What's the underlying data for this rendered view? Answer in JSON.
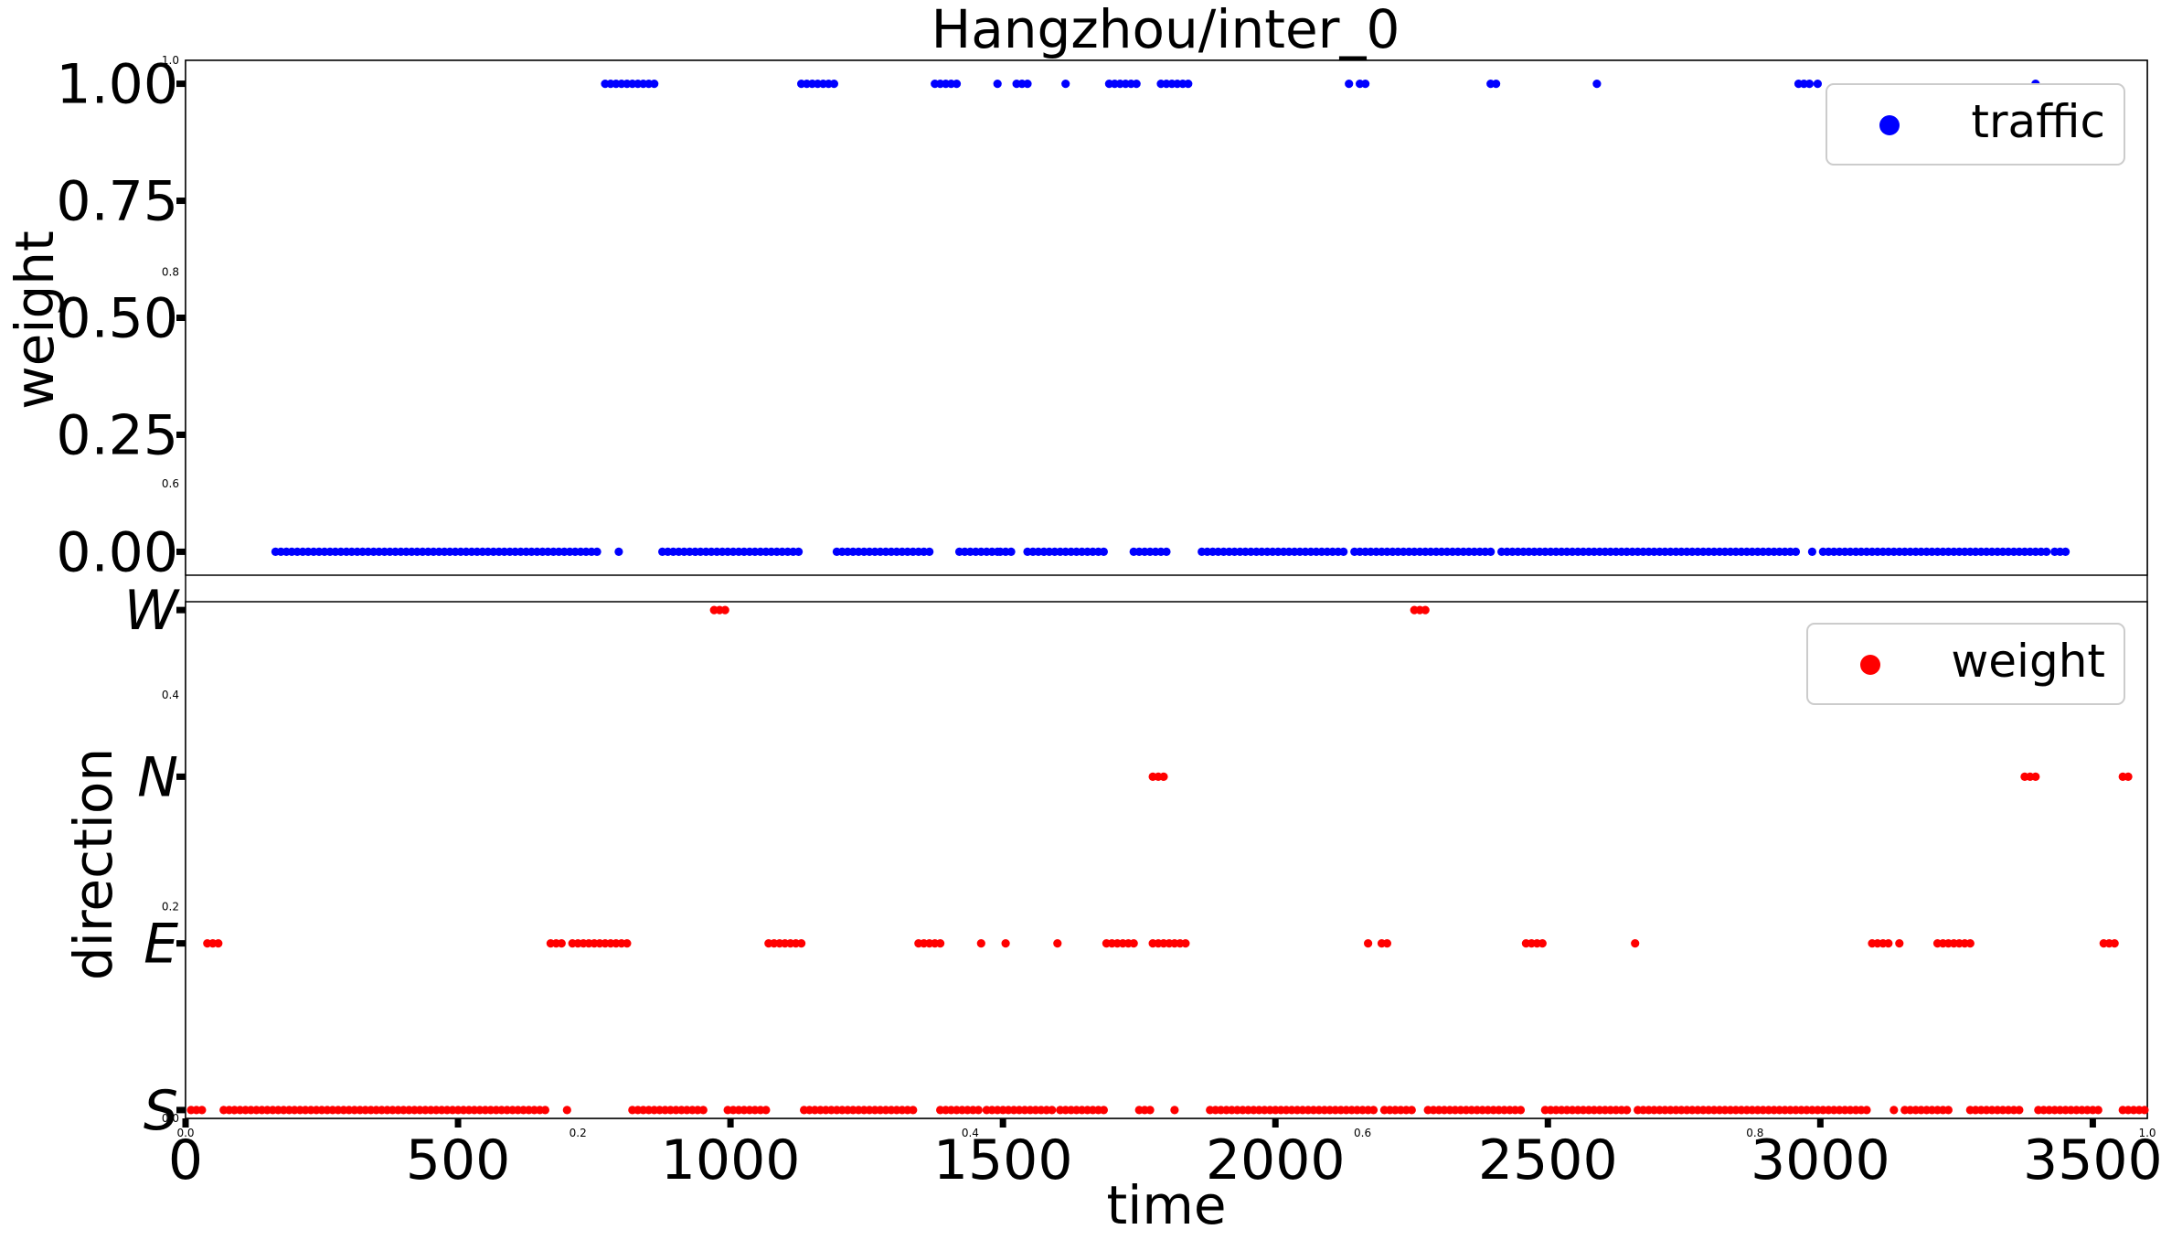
{
  "chart_data": {
    "type": "scatter",
    "title": "Hangzhou/inter_0",
    "background_axis": {
      "ticks": [
        "0.0",
        "0.2",
        "0.4",
        "0.6",
        "0.8",
        "1.0"
      ]
    },
    "panels": [
      {
        "id": "top",
        "ylabel": "weight",
        "xlim": [
          0,
          3600
        ],
        "ylim": [
          -0.05,
          1.05
        ],
        "yticks": [
          0.0,
          0.25,
          0.5,
          0.75,
          1.0
        ],
        "ytick_labels": [
          "0.00",
          "0.25",
          "0.50",
          "0.75",
          "1.00"
        ],
        "legend": "top-right",
        "series": {
          "name": "traffic",
          "color": "#0000ff",
          "runs_at_1": [
            [
              770,
              800
            ],
            [
              810,
              865
            ],
            [
              1130,
              1190
            ],
            [
              1375,
              1415
            ],
            [
              1490,
              1490
            ],
            [
              1525,
              1545
            ],
            [
              1615,
              1615
            ],
            [
              1695,
              1745
            ],
            [
              1790,
              1845
            ],
            [
              2135,
              2135
            ],
            [
              2155,
              2170
            ],
            [
              2395,
              2410
            ],
            [
              2590,
              2590
            ],
            [
              2960,
              2980
            ],
            [
              2995,
              2995
            ],
            [
              3395,
              3400
            ]
          ],
          "runs_at_0": [
            [
              165,
              760
            ],
            [
              795,
              795
            ],
            [
              875,
              1125
            ],
            [
              1195,
              1370
            ],
            [
              1420,
              1490
            ],
            [
              1495,
              1520
            ],
            [
              1545,
              1615
            ],
            [
              1625,
              1690
            ],
            [
              1740,
              1800
            ],
            [
              1865,
              2130
            ],
            [
              2145,
              2145
            ],
            [
              2155,
              2395
            ],
            [
              2415,
              2585
            ],
            [
              2595,
              2955
            ],
            [
              2985,
              2985
            ],
            [
              3005,
              3420
            ],
            [
              3430,
              3455
            ]
          ]
        }
      },
      {
        "id": "bottom",
        "ylabel": "direction",
        "xlabel": "time",
        "xlim": [
          0,
          3600
        ],
        "ylim": [
          -0.05,
          3.05
        ],
        "xticks": [
          0,
          500,
          1000,
          1500,
          2000,
          2500,
          3000,
          3500
        ],
        "xtick_labels": [
          "0",
          "500",
          "1000",
          "1500",
          "2000",
          "2500",
          "3000",
          "3500"
        ],
        "yticks": [
          0,
          1,
          2,
          3
        ],
        "ytick_labels": [
          "S",
          "E",
          "N",
          "W"
        ],
        "legend": "top-right",
        "series": {
          "name": "weight",
          "color": "#ff0000",
          "runs_at_W": [
            [
              970,
              990
            ],
            [
              2255,
              2275
            ]
          ],
          "runs_at_N": [
            [
              1775,
              1795
            ],
            [
              3375,
              3395
            ],
            [
              3555,
              3565
            ]
          ],
          "runs_at_E": [
            [
              40,
              60
            ],
            [
              670,
              690
            ],
            [
              710,
              815
            ],
            [
              1070,
              1130
            ],
            [
              1345,
              1390
            ],
            [
              1460,
              1460
            ],
            [
              1505,
              1505
            ],
            [
              1600,
              1600
            ],
            [
              1690,
              1745
            ],
            [
              1775,
              1835
            ],
            [
              2170,
              2170
            ],
            [
              2195,
              2210
            ],
            [
              2460,
              2490
            ],
            [
              2660,
              2660
            ],
            [
              3095,
              3125
            ],
            [
              3145,
              3145
            ],
            [
              3215,
              3275
            ],
            [
              3520,
              3545
            ]
          ],
          "runs_at_S": [
            [
              10,
              30
            ],
            [
              70,
              660
            ],
            [
              700,
              700
            ],
            [
              820,
              950
            ],
            [
              995,
              1065
            ],
            [
              1135,
              1335
            ],
            [
              1385,
              1460
            ],
            [
              1470,
              1500
            ],
            [
              1510,
              1590
            ],
            [
              1605,
              1685
            ],
            [
              1750,
              1770
            ],
            [
              1815,
              1815
            ],
            [
              1880,
              2170
            ],
            [
              2180,
              2180
            ],
            [
              2200,
              2250
            ],
            [
              2280,
              2450
            ],
            [
              2495,
              2650
            ],
            [
              2665,
              3085
            ],
            [
              3135,
              3135
            ],
            [
              3155,
              3240
            ],
            [
              3275,
              3370
            ],
            [
              3400,
              3510
            ],
            [
              3555,
              3595
            ]
          ]
        }
      }
    ]
  }
}
